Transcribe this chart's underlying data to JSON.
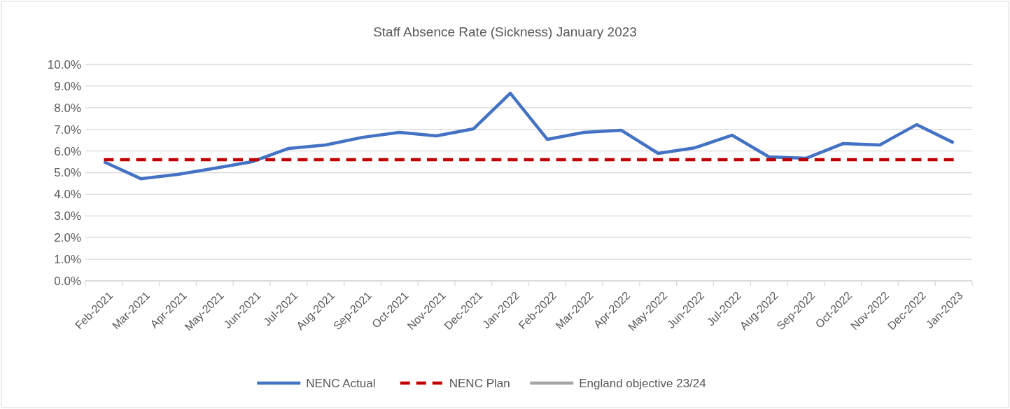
{
  "chart_data": {
    "type": "line",
    "title": "Staff Absence Rate (Sickness) January 2023",
    "categories": [
      "Feb-2021",
      "Mar-2021",
      "Apr-2021",
      "May-2021",
      "Jun-2021",
      "Jul-2021",
      "Aug-2021",
      "Sep-2021",
      "Oct-2021",
      "Nov-2021",
      "Dec-2021",
      "Jan-2022",
      "Feb-2022",
      "Mar-2022",
      "Apr-2022",
      "May-2022",
      "Jun-2022",
      "Jul-2022",
      "Aug-2022",
      "Sep-2022",
      "Oct-2022",
      "Nov-2022",
      "Dec-2022",
      "Jan-2023"
    ],
    "series": [
      {
        "name": "NENC Actual",
        "color": "#4472c4",
        "line_style": "solid",
        "values": [
          5.5,
          4.72,
          4.92,
          5.2,
          5.5,
          6.12,
          6.28,
          6.63,
          6.86,
          6.7,
          7.02,
          8.67,
          6.54,
          6.86,
          6.96,
          5.89,
          6.15,
          6.73,
          5.73,
          5.66,
          6.34,
          6.28,
          7.22,
          6.38
        ]
      },
      {
        "name": "NENC Plan",
        "color": "#c00000",
        "line_style": "dashed",
        "values": [
          5.6,
          5.6,
          5.6,
          5.6,
          5.6,
          5.6,
          5.6,
          5.6,
          5.6,
          5.6,
          5.6,
          5.6,
          5.6,
          5.6,
          5.6,
          5.6,
          5.6,
          5.6,
          5.6,
          5.6,
          5.6,
          5.6,
          5.6,
          5.6
        ]
      },
      {
        "name": "England objective 23/24",
        "color": "#a5a5a5",
        "line_style": "solid",
        "values": [
          null,
          null,
          null,
          null,
          null,
          null,
          null,
          null,
          null,
          null,
          null,
          null,
          null,
          null,
          null,
          null,
          null,
          null,
          null,
          null,
          null,
          null,
          null,
          null
        ]
      }
    ],
    "ylim": [
      0,
      10
    ],
    "yticks": [
      {
        "value": 0,
        "label": "0.0%"
      },
      {
        "value": 1,
        "label": "1.0%"
      },
      {
        "value": 2,
        "label": "2.0%"
      },
      {
        "value": 3,
        "label": "3.0%"
      },
      {
        "value": 4,
        "label": "4.0%"
      },
      {
        "value": 5,
        "label": "5.0%"
      },
      {
        "value": 6,
        "label": "6.0%"
      },
      {
        "value": 7,
        "label": "7.0%"
      },
      {
        "value": 8,
        "label": "8.0%"
      },
      {
        "value": 9,
        "label": "9.0%"
      },
      {
        "value": 10,
        "label": "10.0%"
      }
    ],
    "grid": "y",
    "legend": "bottom",
    "marker": "none"
  }
}
